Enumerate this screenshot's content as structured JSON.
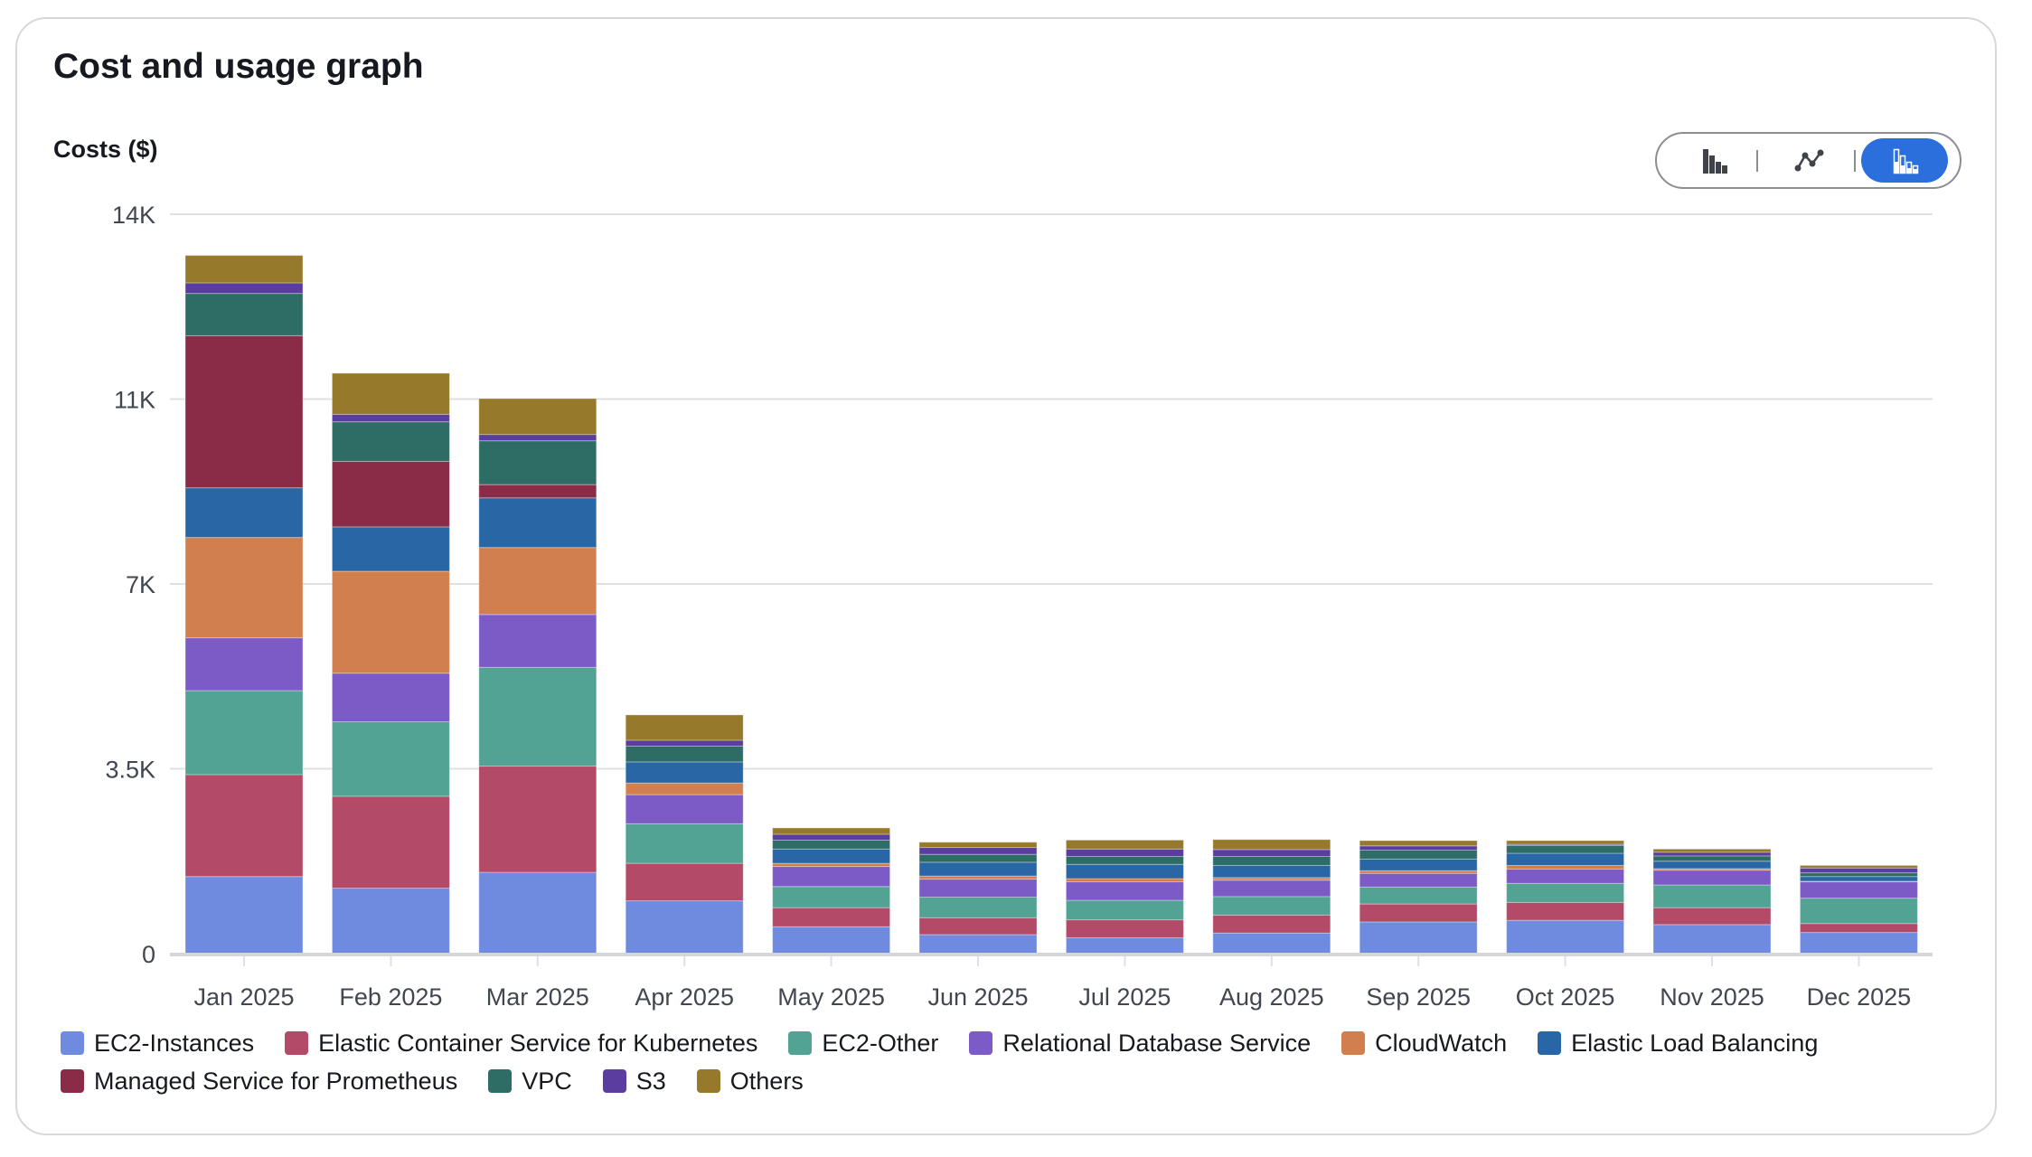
{
  "header": {
    "title": "Cost and usage graph"
  },
  "toggle": {
    "options": [
      {
        "icon": "bar-chart-icon",
        "selected": false
      },
      {
        "icon": "line-chart-icon",
        "selected": false
      },
      {
        "icon": "stacked-bar-chart-icon",
        "selected": true
      }
    ],
    "accent": "#2a6fdb"
  },
  "chart_data": {
    "type": "bar",
    "stacked": true,
    "title": "",
    "ylabel": "Costs ($)",
    "xlabel": "",
    "ylim": [
      0,
      14000
    ],
    "yticks": [
      0,
      3500,
      7000,
      10500,
      14000
    ],
    "ytick_labels": [
      "0",
      "3.5K",
      "7K",
      "11K",
      "14K"
    ],
    "grid": true,
    "legend_position": "bottom",
    "categories": [
      "Jan 2025",
      "Feb 2025",
      "Mar 2025",
      "Apr 2025",
      "May 2025",
      "Jun 2025",
      "Jul 2025",
      "Aug 2025",
      "Sep 2025",
      "Oct 2025",
      "Nov 2025",
      "Dec 2025"
    ],
    "series": [
      {
        "name": "EC2-Instances",
        "color": "#6f8be0",
        "values": [
          1460,
          1240,
          1540,
          1000,
          510,
          360,
          300,
          390,
          600,
          630,
          550,
          400
        ]
      },
      {
        "name": "Elastic Container Service for Kubernetes",
        "color": "#b34a68",
        "values": [
          1930,
          1740,
          2010,
          710,
          360,
          320,
          340,
          340,
          340,
          340,
          320,
          170
        ]
      },
      {
        "name": "EC2-Other",
        "color": "#52a394",
        "values": [
          1590,
          1410,
          1870,
          750,
          400,
          390,
          370,
          350,
          320,
          360,
          430,
          480
        ]
      },
      {
        "name": "Relational Database Service",
        "color": "#7d5bc6",
        "values": [
          1000,
          920,
          1000,
          550,
          380,
          340,
          350,
          310,
          260,
          270,
          280,
          310
        ]
      },
      {
        "name": "CloudWatch",
        "color": "#d17f4e",
        "values": [
          1900,
          1930,
          1270,
          220,
          60,
          60,
          60,
          50,
          50,
          70,
          30,
          10
        ]
      },
      {
        "name": "Elastic Load Balancing",
        "color": "#2866a5",
        "values": [
          940,
          840,
          940,
          400,
          270,
          260,
          270,
          230,
          220,
          230,
          140,
          90
        ]
      },
      {
        "name": "Managed Service for Prometheus",
        "color": "#8a2c47",
        "values": [
          2880,
          1240,
          250,
          0,
          0,
          0,
          0,
          0,
          0,
          0,
          0,
          0
        ]
      },
      {
        "name": "VPC",
        "color": "#2e6d65",
        "values": [
          800,
          750,
          830,
          300,
          170,
          150,
          150,
          170,
          170,
          150,
          100,
          70
        ]
      },
      {
        "name": "S3",
        "color": "#5a3d9e",
        "values": [
          200,
          140,
          120,
          110,
          110,
          130,
          140,
          130,
          80,
          20,
          70,
          90
        ]
      },
      {
        "name": "Others",
        "color": "#97792b",
        "values": [
          520,
          780,
          680,
          480,
          120,
          100,
          170,
          190,
          100,
          70,
          60,
          50
        ]
      }
    ]
  }
}
